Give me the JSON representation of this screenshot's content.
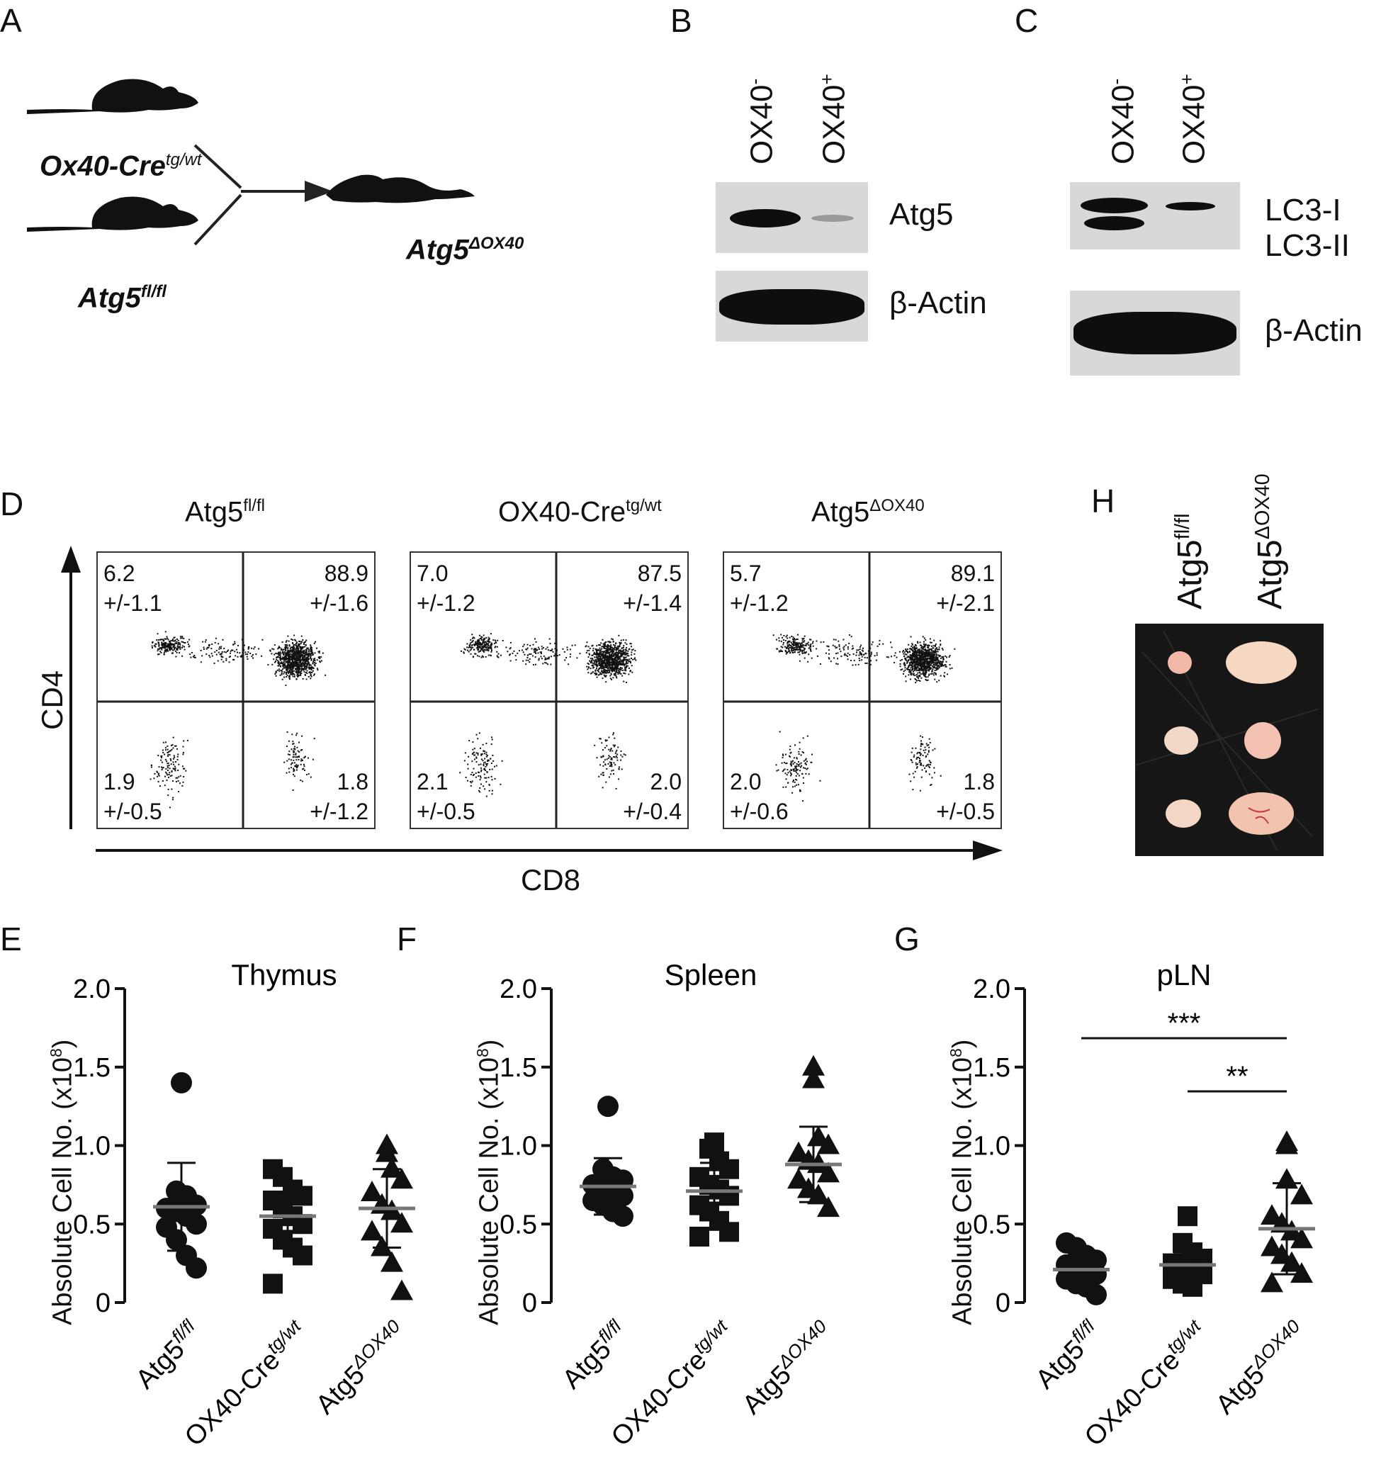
{
  "panels": {
    "A": {
      "letter": "A",
      "top": "Ox40-Cre",
      "top_sup": "tg/wt",
      "bottom": "Atg5",
      "bottom_sup": "fl/fl",
      "result": "Atg5",
      "result_sup": "ΔOX40"
    },
    "B": {
      "letter": "B",
      "lanes": [
        "OX40",
        "OX40"
      ],
      "lane_sups": [
        "-",
        "+"
      ],
      "bands": [
        "Atg5",
        "β-Actin"
      ]
    },
    "C": {
      "letter": "C",
      "lanes": [
        "OX40",
        "OX40"
      ],
      "lane_sups": [
        "-",
        "+"
      ],
      "bands": [
        "LC3-I",
        "LC3-II",
        "β-Actin"
      ]
    },
    "D": {
      "letter": "D",
      "y_axis": "CD4",
      "x_axis": "CD8",
      "plots": [
        {
          "title": "Atg5",
          "sup": "fl/fl",
          "ul": "6.2",
          "ul_sd": "+/-1.1",
          "ur": "88.9",
          "ur_sd": "+/-1.6",
          "ll": "1.9",
          "ll_sd": "+/-0.5",
          "lr": "1.8",
          "lr_sd": "+/-1.2"
        },
        {
          "title": "OX40-Cre",
          "sup": "tg/wt",
          "ul": "7.0",
          "ul_sd": "+/-1.2",
          "ur": "87.5",
          "ur_sd": "+/-1.4",
          "ll": "2.1",
          "ll_sd": "+/-0.5",
          "lr": "2.0",
          "lr_sd": "+/-0.4"
        },
        {
          "title": "Atg5",
          "sup": "ΔOX40",
          "ul": "5.7",
          "ul_sd": "+/-1.2",
          "ur": "89.1",
          "ur_sd": "+/-2.1",
          "ll": "2.0",
          "ll_sd": "+/-0.6",
          "lr": "1.8",
          "lr_sd": "+/-0.5"
        }
      ]
    },
    "H": {
      "letter": "H",
      "cols": [
        "Atg5",
        "Atg5"
      ],
      "col_sups": [
        "fl/fl",
        "ΔOX40"
      ]
    },
    "E_letter": "E",
    "F_letter": "F",
    "G_letter": "G"
  },
  "chart_data": [
    {
      "type": "scatter",
      "panel": "E",
      "title": "Thymus",
      "ylabel": "Absolute Cell No. (x10",
      "ylabel_sup": "8",
      "ylabel_end": ")",
      "ylim": [
        0,
        2.0
      ],
      "yticks": [
        "0",
        "0.5",
        "1.0",
        "1.5",
        "2.0"
      ],
      "categories": [
        "Atg5",
        "OX40-Cre",
        "Atg5"
      ],
      "category_sups": [
        "fl/fl",
        "tg/wt",
        "ΔOX40"
      ],
      "series": [
        {
          "marker": "circle",
          "mean": 0.61,
          "sd": 0.28,
          "values": [
            1.4,
            0.71,
            0.68,
            0.62,
            0.6,
            0.58,
            0.55,
            0.5,
            0.48,
            0.4,
            0.3,
            0.22
          ]
        },
        {
          "marker": "square",
          "mean": 0.55,
          "sd": 0.2,
          "values": [
            0.85,
            0.8,
            0.72,
            0.68,
            0.65,
            0.6,
            0.55,
            0.5,
            0.47,
            0.4,
            0.35,
            0.3,
            0.12
          ]
        },
        {
          "marker": "triangle",
          "mean": 0.6,
          "sd": 0.25,
          "values": [
            1.0,
            0.95,
            0.85,
            0.78,
            0.7,
            0.62,
            0.58,
            0.5,
            0.45,
            0.35,
            0.25,
            0.07
          ]
        }
      ]
    },
    {
      "type": "scatter",
      "panel": "F",
      "title": "Spleen",
      "ylabel": "Absolute Cell No. (x10",
      "ylabel_sup": "8",
      "ylabel_end": ")",
      "ylim": [
        0,
        2.0
      ],
      "yticks": [
        "0",
        "0.5",
        "1.0",
        "1.5",
        "2.0"
      ],
      "categories": [
        "Atg5",
        "OX40-Cre",
        "Atg5"
      ],
      "category_sups": [
        "fl/fl",
        "tg/wt",
        "ΔOX40"
      ],
      "series": [
        {
          "marker": "circle",
          "mean": 0.74,
          "sd": 0.18,
          "values": [
            1.25,
            0.85,
            0.8,
            0.78,
            0.75,
            0.72,
            0.7,
            0.68,
            0.65,
            0.62,
            0.58,
            0.55
          ]
        },
        {
          "marker": "square",
          "mean": 0.71,
          "sd": 0.18,
          "values": [
            1.02,
            0.98,
            0.9,
            0.85,
            0.8,
            0.75,
            0.72,
            0.68,
            0.62,
            0.58,
            0.52,
            0.45,
            0.42
          ]
        },
        {
          "marker": "triangle",
          "mean": 0.88,
          "sd": 0.24,
          "values": [
            1.5,
            1.42,
            1.05,
            1.0,
            0.95,
            0.9,
            0.88,
            0.82,
            0.78,
            0.72,
            0.68,
            0.6
          ]
        }
      ]
    },
    {
      "type": "scatter",
      "panel": "G",
      "title": "pLN",
      "ylabel": "Absolute Cell No. (x10",
      "ylabel_sup": "8",
      "ylabel_end": ")",
      "ylim": [
        0,
        2.0
      ],
      "yticks": [
        "0",
        "0.5",
        "1.0",
        "1.5",
        "2.0"
      ],
      "categories": [
        "Atg5",
        "OX40-Cre",
        "Atg5"
      ],
      "category_sups": [
        "fl/fl",
        "tg/wt",
        "ΔOX40"
      ],
      "significance": [
        {
          "from": 0,
          "to": 2,
          "label": "***"
        },
        {
          "from": 1,
          "to": 2,
          "label": "**"
        }
      ],
      "series": [
        {
          "marker": "circle",
          "mean": 0.21,
          "sd": 0.08,
          "values": [
            0.38,
            0.35,
            0.3,
            0.27,
            0.24,
            0.22,
            0.2,
            0.18,
            0.15,
            0.12,
            0.1,
            0.05
          ]
        },
        {
          "marker": "square",
          "mean": 0.24,
          "sd": 0.08,
          "values": [
            0.55,
            0.38,
            0.32,
            0.28,
            0.25,
            0.22,
            0.2,
            0.18,
            0.15,
            0.12,
            0.1
          ]
        },
        {
          "marker": "triangle",
          "mean": 0.47,
          "sd": 0.29,
          "values": [
            1.02,
            1.0,
            0.78,
            0.68,
            0.55,
            0.5,
            0.45,
            0.4,
            0.35,
            0.3,
            0.25,
            0.18,
            0.12
          ]
        }
      ]
    }
  ]
}
